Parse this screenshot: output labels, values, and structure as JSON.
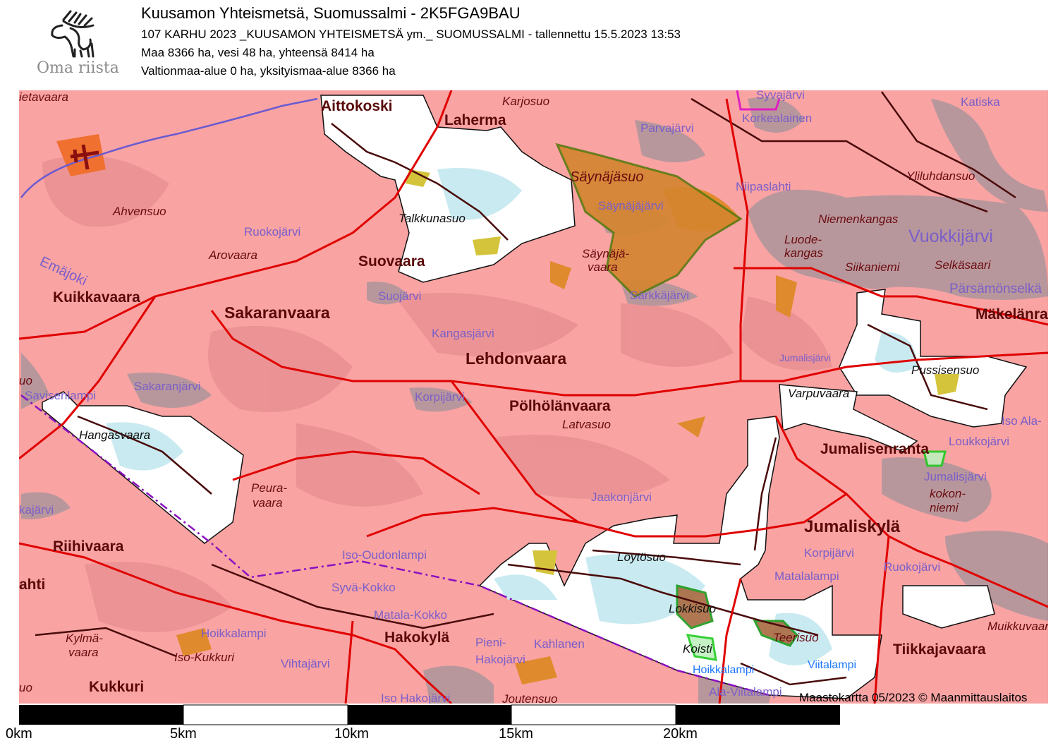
{
  "header": {
    "title": "Kuusamon Yhteismetsä, Suomussalmi - 2K5FGA9BAU",
    "subtitle": "107 KARHU 2023 _KUUSAMON YHTEISMETSÄ ym._ SUOMUSSALMI - tallennettu 15.5.2023 13:53",
    "area_summary": "Maa 8366 ha, vesi 48 ha, yhteensä 8414 ha",
    "ownership_summary": "Valtionmaa-alue 0 ha, yksityismaa-alue 8366 ha"
  },
  "logo": {
    "text": "Oma riista",
    "icon": "moose-icon"
  },
  "map": {
    "credit": "Maastokartta 05/2023 © Maanmittauslaitos",
    "colors": {
      "land": "#f9a3a3",
      "lake": "#b8979c",
      "hunting_area": "#ffffff",
      "road": "#e00000",
      "boundary": "#8a10c0",
      "field": "#e08a2e"
    },
    "labels": [
      {
        "text": "ietavaara",
        "kind": "terrain"
      },
      {
        "text": "Aittokoski",
        "kind": "settlement"
      },
      {
        "text": "Karjosuo",
        "kind": "terrain"
      },
      {
        "text": "Laherma",
        "kind": "settlement"
      },
      {
        "text": "Syvajärvi",
        "kind": "lake"
      },
      {
        "text": "Katiska",
        "kind": "lake"
      },
      {
        "text": "Korkealainen",
        "kind": "lake"
      },
      {
        "text": "Parvajärvi",
        "kind": "lake"
      },
      {
        "text": "Säynäjäsuo",
        "kind": "terrain"
      },
      {
        "text": "Yliluhdansuo",
        "kind": "terrain"
      },
      {
        "text": "Niipaslahti",
        "kind": "lake"
      },
      {
        "text": "Säynäjäjärvi",
        "kind": "lake"
      },
      {
        "text": "Ahvensuo",
        "kind": "terrain"
      },
      {
        "text": "Niemenkangas",
        "kind": "terrain"
      },
      {
        "text": "Talkkunasuo",
        "kind": "area"
      },
      {
        "text": "Ruokojärvi",
        "kind": "lake"
      },
      {
        "text": "Vuokkijärvi",
        "kind": "lake"
      },
      {
        "text": "Luode-",
        "kind": "terrain"
      },
      {
        "text": "kangas",
        "kind": "terrain"
      },
      {
        "text": "Säynäjä-",
        "kind": "terrain"
      },
      {
        "text": "vaara",
        "kind": "terrain"
      },
      {
        "text": "Emäjoki",
        "kind": "lake"
      },
      {
        "text": "Arovaara",
        "kind": "terrain"
      },
      {
        "text": "Suovaara",
        "kind": "settlement"
      },
      {
        "text": "Siikaniemi",
        "kind": "terrain"
      },
      {
        "text": "Selkäsaari",
        "kind": "terrain"
      },
      {
        "text": "Pärsämönselkä",
        "kind": "lake"
      },
      {
        "text": "Suojärvi",
        "kind": "lake"
      },
      {
        "text": "Särkkäjärvi",
        "kind": "lake"
      },
      {
        "text": "Kuikkavaara",
        "kind": "settlement"
      },
      {
        "text": "Sakaranvaara",
        "kind": "settlement"
      },
      {
        "text": "Mäkelänranta",
        "kind": "settlement"
      },
      {
        "text": "Kangasjärvi",
        "kind": "lake"
      },
      {
        "text": "Lehdonvaara",
        "kind": "settlement"
      },
      {
        "text": "Jumalisjärvi",
        "kind": "lake"
      },
      {
        "text": "Pussisensuo",
        "kind": "area"
      },
      {
        "text": "uo",
        "kind": "terrain"
      },
      {
        "text": "Sakaranjärvi",
        "kind": "lake"
      },
      {
        "text": "Savisenlampi",
        "kind": "lake"
      },
      {
        "text": "Varpuvaara",
        "kind": "area"
      },
      {
        "text": "Korpijärvi",
        "kind": "lake"
      },
      {
        "text": "Pölhölänvaara",
        "kind": "settlement"
      },
      {
        "text": "Latvasuo",
        "kind": "terrain"
      },
      {
        "text": "Iso Ala-",
        "kind": "lake"
      },
      {
        "text": "Hangasvaara",
        "kind": "area"
      },
      {
        "text": "Loukkojärvi",
        "kind": "lake"
      },
      {
        "text": "Jumalisenranta",
        "kind": "settlement"
      },
      {
        "text": "Jumalisjärvi",
        "kind": "lake"
      },
      {
        "text": "Peura-",
        "kind": "terrain"
      },
      {
        "text": "vaara",
        "kind": "terrain"
      },
      {
        "text": "kokon-",
        "kind": "terrain"
      },
      {
        "text": "niemi",
        "kind": "terrain"
      },
      {
        "text": "Jaakonjärvi",
        "kind": "lake"
      },
      {
        "text": "kajärvi",
        "kind": "lake"
      },
      {
        "text": "Jumaliskylä",
        "kind": "settlement"
      },
      {
        "text": "Riihivaara",
        "kind": "settlement"
      },
      {
        "text": "Löytösuo",
        "kind": "area"
      },
      {
        "text": "Korpijärvi",
        "kind": "lake"
      },
      {
        "text": "Iso-Oudonlampi",
        "kind": "lake"
      },
      {
        "text": "Ruokojärvi",
        "kind": "lake"
      },
      {
        "text": "Matalalampi",
        "kind": "lake"
      },
      {
        "text": "ahti",
        "kind": "settlement"
      },
      {
        "text": "Syvä-Kokko",
        "kind": "lake"
      },
      {
        "text": "Lokkisuo",
        "kind": "area"
      },
      {
        "text": "Matala-Kokko",
        "kind": "lake"
      },
      {
        "text": "Kylmä-",
        "kind": "terrain"
      },
      {
        "text": "vaara",
        "kind": "terrain"
      },
      {
        "text": "Hoikkalampi",
        "kind": "lake"
      },
      {
        "text": "Hakokylä",
        "kind": "settlement"
      },
      {
        "text": "Teerisuo",
        "kind": "terrain"
      },
      {
        "text": "Muikkuvaara",
        "kind": "terrain"
      },
      {
        "text": "Tiikkajavaara",
        "kind": "settlement"
      },
      {
        "text": "Pieni-",
        "kind": "lake"
      },
      {
        "text": "Hakojärvi",
        "kind": "lake"
      },
      {
        "text": "Kahlanen",
        "kind": "lake"
      },
      {
        "text": "Koisti",
        "kind": "area"
      },
      {
        "text": "Iso-Kukkuri",
        "kind": "terrain"
      },
      {
        "text": "Vihtajärvi",
        "kind": "lake"
      },
      {
        "text": "Hoikkalampi",
        "kind": "water"
      },
      {
        "text": "Viitalampi",
        "kind": "water"
      },
      {
        "text": "uo",
        "kind": "terrain"
      },
      {
        "text": "Kukkuri",
        "kind": "settlement"
      },
      {
        "text": "Iso Hakojärvi",
        "kind": "lake"
      },
      {
        "text": "Joutensuo",
        "kind": "terrain"
      },
      {
        "text": "Ala-Viitalampi",
        "kind": "lake"
      }
    ]
  },
  "scale_bar": {
    "labels": [
      "0km",
      "5km",
      "10km",
      "15km",
      "20km"
    ]
  }
}
